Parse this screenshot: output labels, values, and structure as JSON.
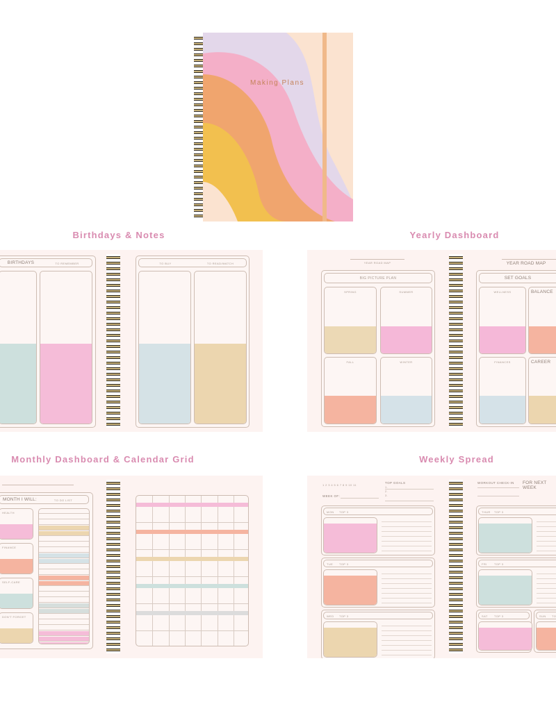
{
  "cover": {
    "title": "Making Plans",
    "colors": {
      "background": "#fbe3d0",
      "lavender": "#e3d7ea",
      "pink": "#f4afc8",
      "orange": "#f0a56e",
      "yellow": "#f2c04f",
      "band": "#f0b98a"
    }
  },
  "sections": {
    "birthdays": {
      "title": "Birthdays & Notes",
      "left_headers": [
        "BIRTHDAYS",
        "TO REMEMBER"
      ],
      "right_headers": [
        "TO BUY",
        "TO READ/WATCH"
      ]
    },
    "yearly": {
      "title": "Yearly Dashboard",
      "left_caption": "YEAR ROAD MAP",
      "right_caption": "YEAR ROAD MAP",
      "left_header": "BIG PICTURE PLAN",
      "right_header": "SET GOALS",
      "left_quadrants": [
        "SPRING",
        "SUMMER",
        "FALL",
        "WINTER"
      ],
      "right_quadrants": [
        "WELLNESS",
        "BALANCE",
        "FINANCES",
        "CAREER"
      ]
    },
    "monthly": {
      "title": "Monthly Dashboard & Calendar Grid",
      "headers": [
        "MONTH I WILL:",
        "TO DO LIST"
      ],
      "boxes": [
        "HEALTH",
        "FINANCE",
        "SELF-CARE",
        "DON'T FORGET"
      ]
    },
    "weekly": {
      "title": "Weekly Spread",
      "numbers": "1  2  3  4  5  6  7  8  9  10  11",
      "top_goals": "TOP GOALS",
      "goal_items": [
        "1.",
        "2.",
        "3."
      ],
      "week_of": "WEEK OF:",
      "days_left": [
        "MON",
        "TUE",
        "WED"
      ],
      "days_right": [
        "THUR",
        "FRI",
        "SAT",
        "SUN"
      ],
      "top3": "TOP 3",
      "workout": "WORKOUT CHECK-IN",
      "next_week": "FOR NEXT WEEK"
    }
  },
  "colors": {
    "title": "#d98bb0",
    "page": "#fdf3f1",
    "teal": "#cde0dd",
    "pink": "#f5bcd8",
    "bluegray": "#d5e2e6",
    "tan": "#ecd6af",
    "salmon": "#f5b4a0"
  }
}
